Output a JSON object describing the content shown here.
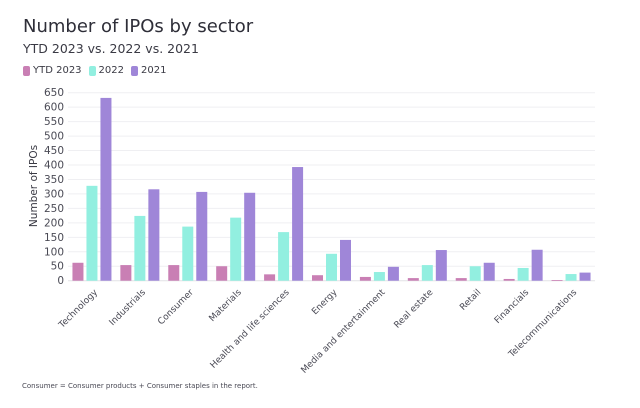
{
  "chart_data": {
    "type": "bar",
    "title": "Number of IPOs by sector",
    "subtitle": "YTD 2023 vs. 2022 vs. 2021",
    "xlabel": "",
    "ylabel": "Number of IPOs",
    "ylim": [
      0,
      650
    ],
    "yticks": [
      0,
      50,
      100,
      150,
      200,
      250,
      300,
      350,
      400,
      450,
      500,
      550,
      600,
      650
    ],
    "grid": true,
    "legend_position": "top-left",
    "categories": [
      "Technology",
      "Industrials",
      "Consumer",
      "Materials",
      "Health and life sciences",
      "Energy",
      "Media and entertainment",
      "Real estate",
      "Retail",
      "Financials",
      "Telecommunications"
    ],
    "series": [
      {
        "name": "YTD 2023",
        "color": "#c97fb4",
        "values": [
          62,
          54,
          54,
          50,
          22,
          19,
          13,
          9,
          9,
          6,
          2
        ]
      },
      {
        "name": "2022",
        "color": "#92efe0",
        "values": [
          328,
          224,
          187,
          218,
          168,
          93,
          30,
          54,
          50,
          44,
          23
        ]
      },
      {
        "name": "2021",
        "color": "#9f86d8",
        "values": [
          632,
          316,
          307,
          304,
          393,
          141,
          48,
          106,
          62,
          107,
          28
        ]
      }
    ],
    "footnote": "Consumer = Consumer products + Consumer staples in the report."
  }
}
